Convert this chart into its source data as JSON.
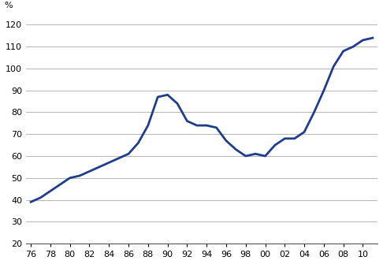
{
  "x_numeric": [
    1976,
    1977,
    1978,
    1979,
    1980,
    1981,
    1982,
    1983,
    1984,
    1985,
    1986,
    1987,
    1988,
    1989,
    1990,
    1991,
    1992,
    1993,
    1994,
    1995,
    1996,
    1997,
    1998,
    1999,
    2000,
    2001,
    2002,
    2003,
    2004,
    2005,
    2006,
    2007,
    2008,
    2009,
    2010,
    2011
  ],
  "y": [
    39,
    41,
    44,
    47,
    50,
    51,
    53,
    55,
    57,
    59,
    61,
    66,
    74,
    87,
    88,
    84,
    76,
    74,
    74,
    73,
    67,
    63,
    60,
    61,
    60,
    65,
    68,
    68,
    71,
    80,
    90,
    101,
    108,
    110,
    113,
    114
  ],
  "x_tick_labels": [
    "76",
    "78",
    "80",
    "82",
    "84",
    "86",
    "88",
    "90",
    "92",
    "94",
    "96",
    "98",
    "00",
    "02",
    "04",
    "06",
    "08",
    "10"
  ],
  "x_tick_positions": [
    1976,
    1978,
    1980,
    1982,
    1984,
    1986,
    1988,
    1990,
    1992,
    1994,
    1996,
    1998,
    2000,
    2002,
    2004,
    2006,
    2008,
    2010
  ],
  "y_tick_values": [
    20,
    30,
    40,
    50,
    60,
    70,
    80,
    90,
    100,
    110,
    120
  ],
  "ylim": [
    20,
    125
  ],
  "xlim": [
    1975.5,
    2011.5
  ],
  "line_color": "#1f3d8a",
  "line_width": 2.0,
  "ylabel": "%",
  "bg_color": "#ffffff",
  "grid_color": "#aaaaaa"
}
